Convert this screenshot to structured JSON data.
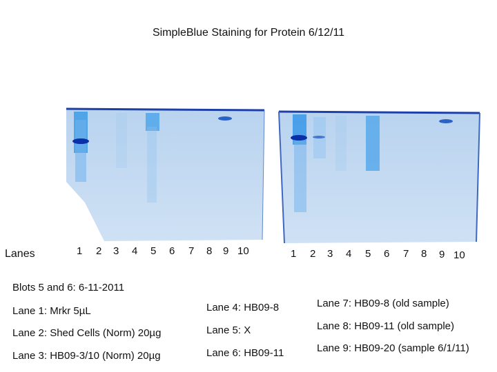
{
  "title": "SimpleBlue Staining for Protein 6/12/11",
  "lanes_label": "Lanes",
  "gel_left_lane_numbers": [
    "1",
    "2",
    "3",
    "4",
    "5",
    "6",
    "7",
    "8",
    "9",
    "10"
  ],
  "gel_right_lane_numbers": [
    "1",
    "2",
    "3",
    "4",
    "5",
    "6",
    "7",
    "8",
    "9",
    "10"
  ],
  "notes_left": [
    "Blots 5 and 6: 6-11-2011",
    "Lane 1: Mrkr 5µL",
    "Lane 2: Shed Cells (Norm) 20µg",
    "Lane 3: HB09-3/10 (Norm) 20µg"
  ],
  "notes_middle": [
    "Lane 4: HB09-8",
    "Lane 5: X",
    "Lane 6: HB09-11"
  ],
  "notes_right": [
    "Lane 7: HB09-8 (old sample)",
    "Lane 8: HB09-11 (old sample)",
    "Lane 9: HB09-20 (sample 6/1/11)"
  ],
  "colors": {
    "gel_fill": "#c5daf1",
    "gel_edge": "#1f3fa8",
    "band": "#0b2fa6",
    "streak": "#3f9be8"
  }
}
